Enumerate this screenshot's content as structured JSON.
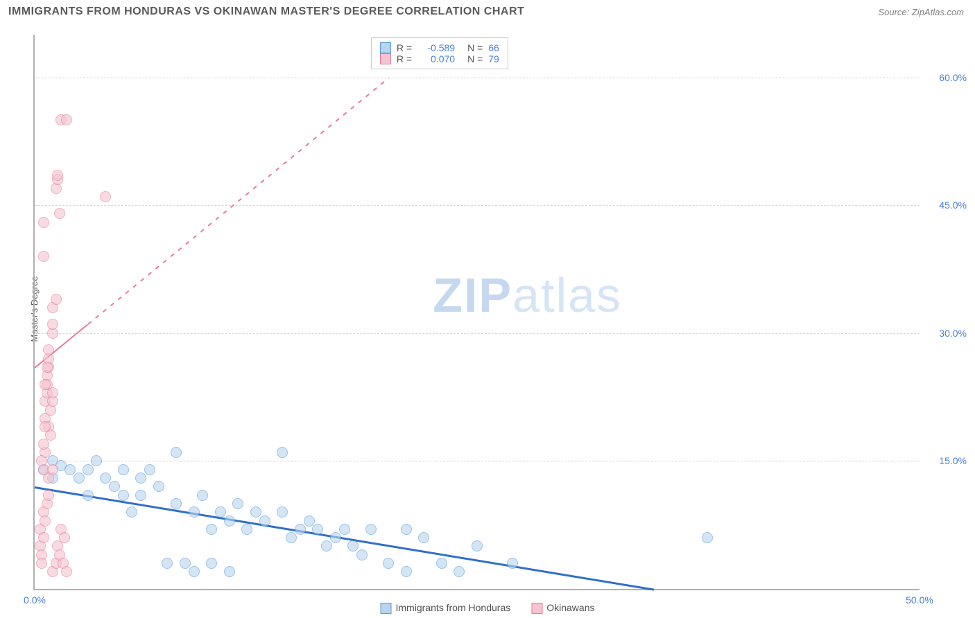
{
  "title": "IMMIGRANTS FROM HONDURAS VS OKINAWAN MASTER'S DEGREE CORRELATION CHART",
  "source": "Source: ZipAtlas.com",
  "watermark_bold": "ZIP",
  "watermark_light": "atlas",
  "chart": {
    "type": "scatter",
    "xlabel": "",
    "ylabel": "Master's Degree",
    "xlim": [
      0,
      50
    ],
    "ylim": [
      0,
      65
    ],
    "x_ticks": [
      {
        "v": 0,
        "l": "0.0%"
      },
      {
        "v": 50,
        "l": "50.0%"
      }
    ],
    "y_ticks": [
      {
        "v": 15,
        "l": "15.0%"
      },
      {
        "v": 30,
        "l": "30.0%"
      },
      {
        "v": 45,
        "l": "45.0%"
      },
      {
        "v": 60,
        "l": "60.0%"
      }
    ],
    "grid_color": "#d5d5d5",
    "background_color": "#ffffff",
    "axis_color": "#b0b0b0",
    "tick_color": "#4a7fd6",
    "marker_radius": 8,
    "marker_opacity": 0.6,
    "series": [
      {
        "name": "Immigrants from Honduras",
        "fill": "#b8d4f0",
        "stroke": "#5a9bd5",
        "trend": {
          "x1": 0,
          "y1": 12,
          "x2": 35,
          "y2": 0,
          "color": "#2e6fc9",
          "width": 3,
          "dash": "solid"
        },
        "R": "-0.589",
        "N": "66",
        "points": [
          [
            0.5,
            14
          ],
          [
            1,
            15
          ],
          [
            1,
            13
          ],
          [
            1.5,
            14.5
          ],
          [
            2,
            14
          ],
          [
            2.5,
            13
          ],
          [
            3,
            14
          ],
          [
            3,
            11
          ],
          [
            3.5,
            15
          ],
          [
            4,
            13
          ],
          [
            4.5,
            12
          ],
          [
            5,
            11
          ],
          [
            5,
            14
          ],
          [
            5.5,
            9
          ],
          [
            6,
            13
          ],
          [
            6,
            11
          ],
          [
            6.5,
            14
          ],
          [
            7,
            12
          ],
          [
            7.5,
            3
          ],
          [
            8,
            16
          ],
          [
            8,
            10
          ],
          [
            8.5,
            3
          ],
          [
            9,
            9
          ],
          [
            9,
            2
          ],
          [
            9.5,
            11
          ],
          [
            10,
            7
          ],
          [
            10,
            3
          ],
          [
            10.5,
            9
          ],
          [
            11,
            8
          ],
          [
            11,
            2
          ],
          [
            11.5,
            10
          ],
          [
            12,
            7
          ],
          [
            12.5,
            9
          ],
          [
            13,
            8
          ],
          [
            14,
            16
          ],
          [
            14,
            9
          ],
          [
            14.5,
            6
          ],
          [
            15,
            7
          ],
          [
            15.5,
            8
          ],
          [
            16,
            7
          ],
          [
            16.5,
            5
          ],
          [
            17,
            6
          ],
          [
            17.5,
            7
          ],
          [
            18,
            5
          ],
          [
            18.5,
            4
          ],
          [
            19,
            7
          ],
          [
            20,
            3
          ],
          [
            21,
            7
          ],
          [
            21,
            2
          ],
          [
            22,
            6
          ],
          [
            23,
            3
          ],
          [
            24,
            2
          ],
          [
            25,
            5
          ],
          [
            27,
            3
          ],
          [
            38,
            6
          ]
        ]
      },
      {
        "name": "Okinawans",
        "fill": "#f5c4d0",
        "stroke": "#e87a9a",
        "trend": {
          "x1": 0,
          "y1": 26,
          "x2": 20,
          "y2": 60,
          "color": "#e87a9a",
          "width": 2,
          "dash": "solid_then_dash",
          "solid_until_x": 3
        },
        "R": "0.070",
        "N": "79",
        "points": [
          [
            0.3,
            7
          ],
          [
            0.3,
            5
          ],
          [
            0.4,
            4
          ],
          [
            0.4,
            3
          ],
          [
            0.5,
            6
          ],
          [
            0.5,
            9
          ],
          [
            0.5,
            14
          ],
          [
            0.6,
            8
          ],
          [
            0.6,
            20
          ],
          [
            0.6,
            22
          ],
          [
            0.7,
            23
          ],
          [
            0.7,
            24
          ],
          [
            0.7,
            25
          ],
          [
            0.8,
            26
          ],
          [
            0.8,
            27
          ],
          [
            0.8,
            28
          ],
          [
            0.8,
            19
          ],
          [
            0.9,
            18
          ],
          [
            0.9,
            21
          ],
          [
            1,
            22
          ],
          [
            1,
            23
          ],
          [
            1,
            30
          ],
          [
            1,
            31
          ],
          [
            1,
            33
          ],
          [
            1.2,
            34
          ],
          [
            1.2,
            47
          ],
          [
            1.3,
            48
          ],
          [
            1.3,
            48.5
          ],
          [
            1.4,
            44
          ],
          [
            1.5,
            55
          ],
          [
            1.8,
            55
          ],
          [
            0.5,
            39
          ],
          [
            0.5,
            43
          ],
          [
            0.6,
            16
          ],
          [
            0.7,
            10
          ],
          [
            0.8,
            11
          ],
          [
            0.8,
            13
          ],
          [
            4,
            46
          ],
          [
            1,
            2
          ],
          [
            1.2,
            3
          ],
          [
            1.3,
            5
          ],
          [
            1.4,
            4
          ],
          [
            1.5,
            7
          ],
          [
            1.6,
            3
          ],
          [
            1.7,
            6
          ],
          [
            1.8,
            2
          ],
          [
            0.4,
            15
          ],
          [
            0.5,
            17
          ],
          [
            0.6,
            19
          ],
          [
            0.6,
            24
          ],
          [
            0.7,
            26
          ],
          [
            1,
            14
          ]
        ]
      }
    ]
  },
  "legend_bottom": [
    {
      "label": "Immigrants from Honduras",
      "fill": "#b8d4f0",
      "stroke": "#5a9bd5"
    },
    {
      "label": "Okinawans",
      "fill": "#f5c4d0",
      "stroke": "#e87a9a"
    }
  ],
  "legend_box": {
    "rows": [
      {
        "fill": "#b8d4f0",
        "stroke": "#5a9bd5",
        "R": "-0.589",
        "N": "66"
      },
      {
        "fill": "#f5c4d0",
        "stroke": "#e87a9a",
        "R": "0.070",
        "N": "79"
      }
    ],
    "labels": {
      "R": "R =",
      "N": "N ="
    }
  }
}
